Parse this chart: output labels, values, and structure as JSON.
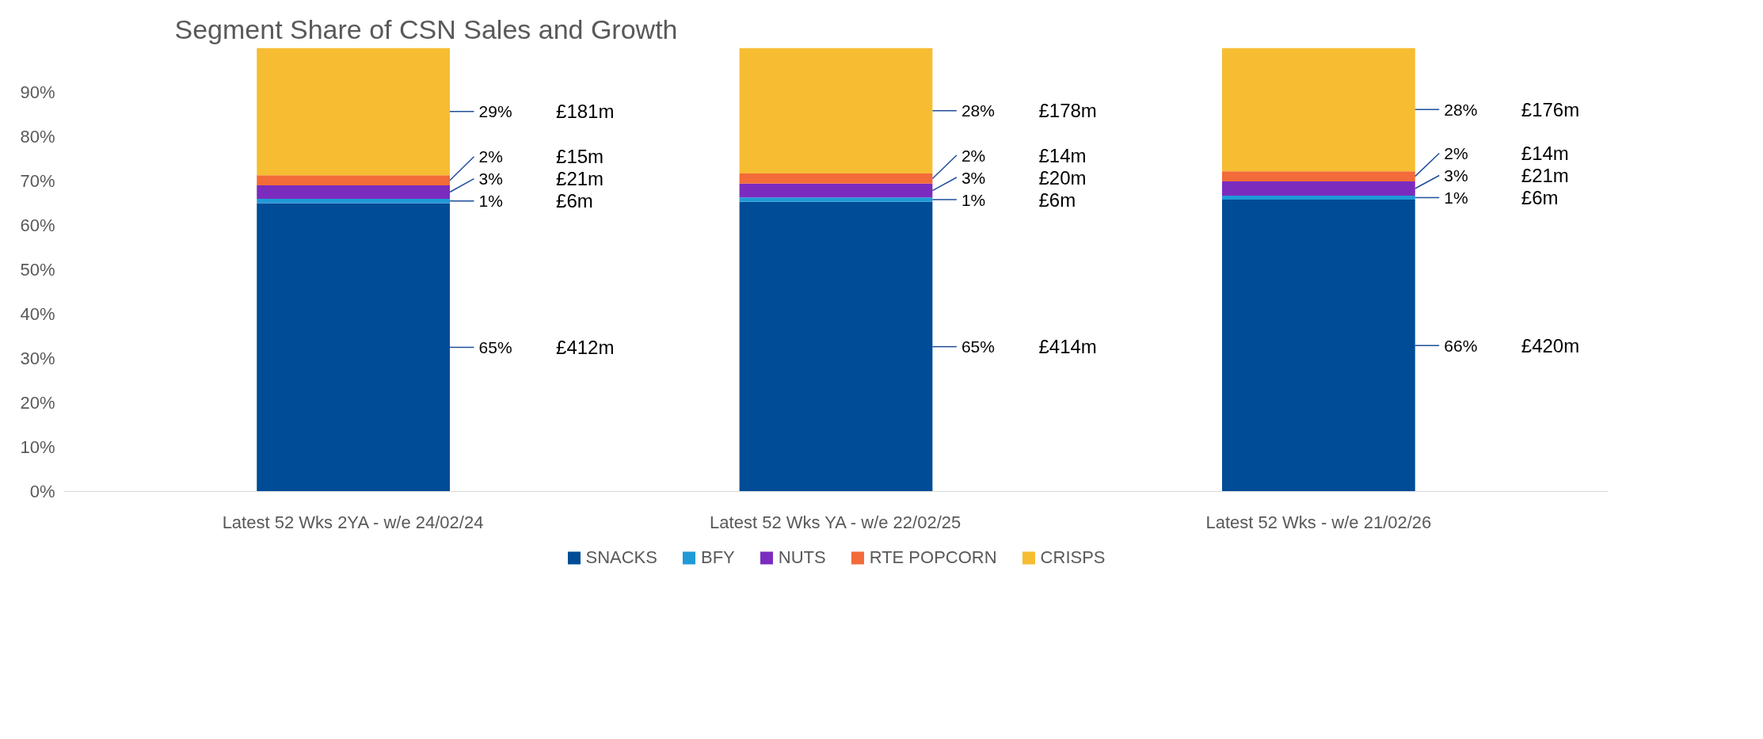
{
  "chart_data": {
    "type": "bar",
    "stacked": true,
    "title": "Segment Share of CSN Sales and Growth",
    "categories": [
      "Latest 52 Wks 2YA - w/e 24/02/24",
      "Latest 52 Wks YA - w/e 22/02/25",
      "Latest 52 Wks - w/e 21/02/26"
    ],
    "series": [
      {
        "name": "SNACKS",
        "color": "#004c97",
        "values": [
          65,
          65.3,
          65.8
        ],
        "value_labels": [
          "65%",
          "65%",
          "66%"
        ]
      },
      {
        "name": "BFY",
        "color": "#1f9ad6",
        "values": [
          1,
          1,
          0.9
        ],
        "value_labels": [
          "1%",
          "1%",
          "1%"
        ]
      },
      {
        "name": "NUTS",
        "color": "#7b2cbf",
        "values": [
          3,
          3.1,
          3.2
        ],
        "value_labels": [
          "3%",
          "3%",
          "3%"
        ]
      },
      {
        "name": "RTE POPCORN",
        "color": "#f26b38",
        "values": [
          2.3,
          2.3,
          2.3
        ],
        "value_labels": [
          "2%",
          "2%",
          "2%"
        ]
      },
      {
        "name": "CRISPS",
        "color": "#f6bd33",
        "values": [
          28.7,
          28.3,
          27.8
        ],
        "value_labels": [
          "29%",
          "28%",
          "28%"
        ]
      }
    ],
    "annotations": [
      "£412m",
      "£6m",
      "£21m",
      "£15m",
      "£181m",
      "£414m",
      "£6m",
      "£20m",
      "£14m",
      "£178m",
      "£420m",
      "£6m",
      "£21m",
      "£14m",
      "£176m"
    ],
    "ylim": [
      0,
      100
    ],
    "yticks": [
      {
        "value": 0,
        "label": "0%"
      },
      {
        "value": 10,
        "label": "10%"
      },
      {
        "value": 20,
        "label": "20%"
      },
      {
        "value": 30,
        "label": "30%"
      },
      {
        "value": 40,
        "label": "40%"
      },
      {
        "value": 50,
        "label": "50%"
      },
      {
        "value": 60,
        "label": "60%"
      },
      {
        "value": 70,
        "label": "70%"
      },
      {
        "value": 80,
        "label": "80%"
      },
      {
        "value": 90,
        "label": "90%"
      }
    ],
    "grid": false,
    "legend": "bottom"
  }
}
